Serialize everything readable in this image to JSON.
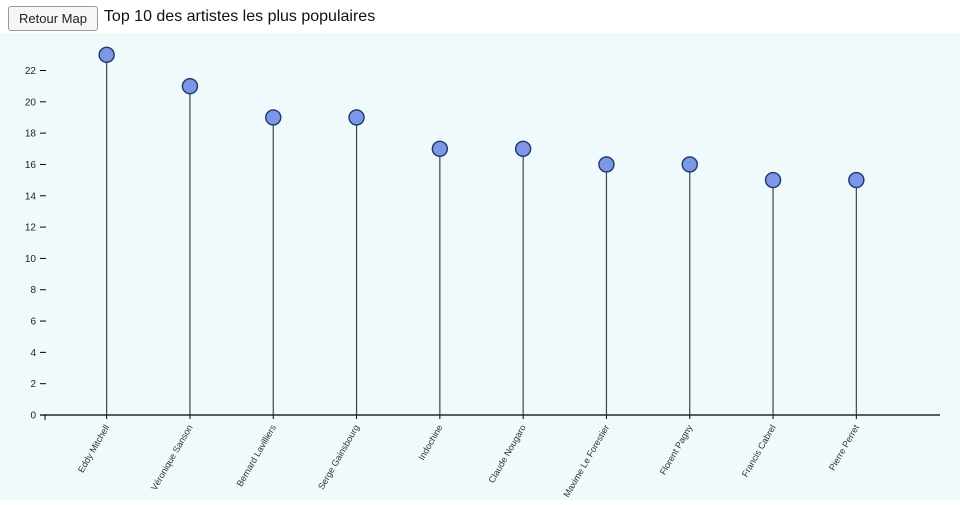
{
  "header": {
    "back_button_label": "Retour Map",
    "title": "Top 10 des artistes les plus populaires"
  },
  "chart_data": {
    "type": "scatter",
    "variant": "lollipop-stem",
    "title": "Top 10 des artistes les plus populaires",
    "categories": [
      "Eddy Mitchell",
      "Véronique Sanson",
      "Bernard Lavilliers",
      "Serge Gainsbourg",
      "Indochine",
      "Claude Nougaro",
      "Maxime Le Forestier",
      "Florent Pagny",
      "Francis Cabrel",
      "Pierre Perret"
    ],
    "values": [
      23,
      21,
      19,
      19,
      17,
      17,
      16,
      16,
      15,
      15
    ],
    "xlabel": "",
    "ylabel": "",
    "ylim": [
      0,
      23.5
    ],
    "ytick_step": 2,
    "grid": false,
    "legend": "none",
    "colors": {
      "marker_fill": "#7d96e8",
      "marker_stroke": "#1f3864",
      "stem": "#37474f",
      "axis": "#000000",
      "tick_text": "#222222",
      "plot_background": "#f0f9fb"
    }
  }
}
